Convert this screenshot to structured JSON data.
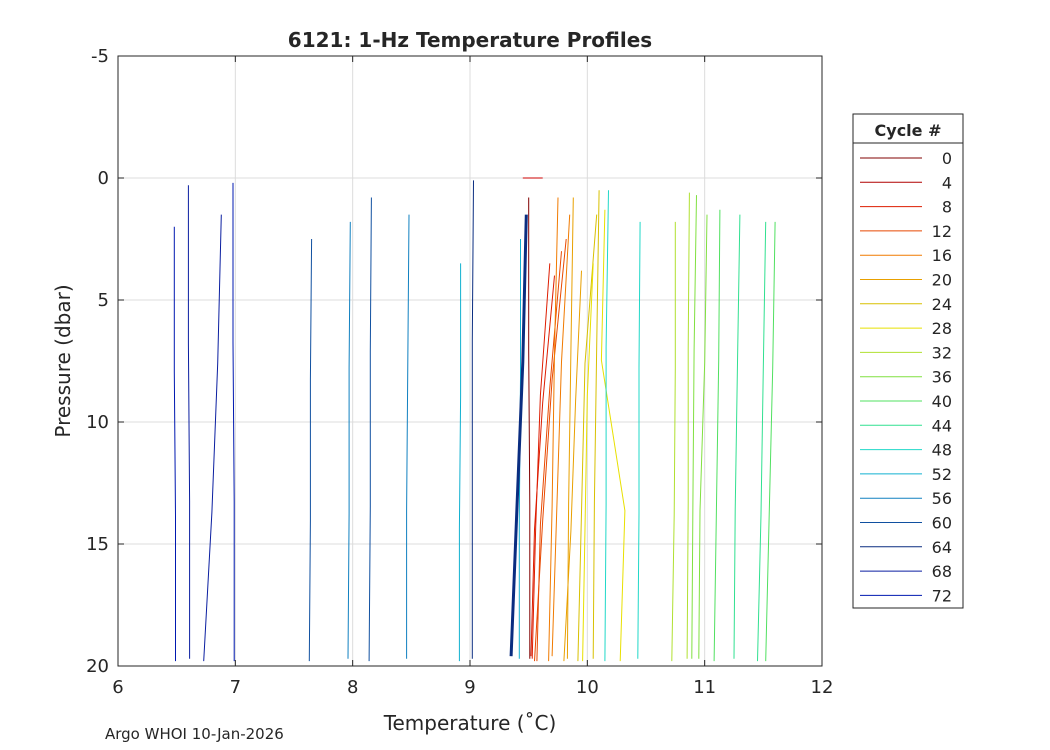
{
  "chart_data": {
    "type": "line",
    "title": "6121: 1-Hz Temperature Profiles",
    "xlabel": "Temperature (˚C)",
    "ylabel": "Pressure (dbar)",
    "xlim": [
      6,
      12
    ],
    "ylim": [
      -5,
      20
    ],
    "y_reversed": true,
    "grid": true,
    "x_ticks": [
      "6",
      "7",
      "8",
      "9",
      "10",
      "11",
      "12"
    ],
    "y_ticks": [
      "-5",
      "0",
      "5",
      "10",
      "15",
      "20"
    ],
    "legend": {
      "title": "Cycle #",
      "placement": "right",
      "entries": [
        "0",
        "4",
        "8",
        "12",
        "16",
        "20",
        "24",
        "28",
        "32",
        "36",
        "40",
        "44",
        "48",
        "52",
        "56",
        "60",
        "64",
        "68",
        "72"
      ],
      "colors": [
        "#800000",
        "#b00000",
        "#dd1c00",
        "#e84800",
        "#f07a00",
        "#e8a000",
        "#d8c000",
        "#e8e000",
        "#b0e030",
        "#80e040",
        "#50e060",
        "#30e090",
        "#20d8c8",
        "#10b0d0",
        "#1080c0",
        "#1050a0",
        "#0a2d80",
        "#0a1ea0",
        "#0018b0"
      ]
    },
    "series": [
      {
        "name": "0",
        "color": "#800000",
        "profiles": [
          {
            "top": 0.8,
            "bottom": 19.7,
            "x": [
              9.5,
              9.5,
              9.51,
              9.51
            ]
          }
        ]
      },
      {
        "name": "4",
        "color": "#cc0000",
        "profiles": [
          {
            "top": 0.0,
            "bottom": 0.0,
            "x": [
              9.45,
              9.62
            ]
          }
        ]
      },
      {
        "name": "8",
        "color": "#dd1c00",
        "profiles": [
          {
            "top": 4.0,
            "bottom": 19.6,
            "x": [
              9.72,
              9.62,
              9.55,
              9.52
            ]
          },
          {
            "top": 3.5,
            "bottom": 19.7,
            "x": [
              9.68,
              9.6,
              9.56,
              9.53
            ]
          }
        ]
      },
      {
        "name": "12",
        "color": "#e84800",
        "profiles": [
          {
            "top": 2.5,
            "bottom": 19.8,
            "x": [
              9.82,
              9.7,
              9.62,
              9.55
            ]
          },
          {
            "top": 3.0,
            "bottom": 19.8,
            "x": [
              9.78,
              9.68,
              9.6,
              9.57
            ]
          }
        ]
      },
      {
        "name": "16",
        "color": "#f07a00",
        "profiles": [
          {
            "top": 1.5,
            "bottom": 19.6,
            "x": [
              9.85,
              9.78,
              9.74,
              9.7
            ]
          },
          {
            "top": 0.8,
            "bottom": 19.8,
            "x": [
              9.75,
              9.72,
              9.7,
              9.67
            ]
          }
        ]
      },
      {
        "name": "20",
        "color": "#e8a000",
        "profiles": [
          {
            "top": 0.8,
            "bottom": 19.7,
            "x": [
              9.88,
              9.86,
              9.84,
              9.83
            ]
          },
          {
            "top": 3.8,
            "bottom": 19.8,
            "x": [
              9.95,
              9.9,
              9.86,
              9.8
            ]
          }
        ]
      },
      {
        "name": "24",
        "color": "#d8c000",
        "profiles": [
          {
            "top": 1.5,
            "bottom": 19.8,
            "x": [
              10.08,
              9.98,
              9.95,
              9.92
            ]
          },
          {
            "top": 0.5,
            "bottom": 19.7,
            "x": [
              10.1,
              10.08,
              10.06,
              10.05
            ]
          }
        ]
      },
      {
        "name": "28",
        "color": "#e8e000",
        "profiles": [
          {
            "top": 1.3,
            "bottom": 19.8,
            "x": [
              10.15,
              10.12,
              10.32,
              10.28
            ]
          },
          {
            "top": 3.5,
            "bottom": 19.8,
            "x": [
              10.05,
              10.0,
              9.98,
              9.96
            ]
          }
        ]
      },
      {
        "name": "32",
        "color": "#b0e030",
        "profiles": [
          {
            "top": 1.8,
            "bottom": 19.8,
            "x": [
              10.75,
              10.75,
              10.74,
              10.72
            ]
          },
          {
            "top": 0.6,
            "bottom": 19.7,
            "x": [
              10.87,
              10.86,
              10.86,
              10.85
            ]
          }
        ]
      },
      {
        "name": "36",
        "color": "#80e040",
        "profiles": [
          {
            "top": 0.7,
            "bottom": 19.7,
            "x": [
              10.93,
              10.91,
              10.9,
              10.89
            ]
          },
          {
            "top": 1.5,
            "bottom": 19.7,
            "x": [
              11.02,
              11.0,
              10.96,
              10.95
            ]
          }
        ]
      },
      {
        "name": "40",
        "color": "#50e060",
        "profiles": [
          {
            "top": 1.3,
            "bottom": 19.8,
            "x": [
              11.13,
              11.12,
              11.1,
              11.08
            ]
          },
          {
            "top": 1.8,
            "bottom": 19.8,
            "x": [
              11.6,
              11.58,
              11.55,
              11.52
            ]
          }
        ]
      },
      {
        "name": "44",
        "color": "#30e090",
        "profiles": [
          {
            "top": 1.8,
            "bottom": 19.8,
            "x": [
              11.52,
              11.5,
              11.48,
              11.45
            ]
          },
          {
            "top": 1.5,
            "bottom": 19.7,
            "x": [
              11.3,
              11.28,
              11.26,
              11.25
            ]
          }
        ]
      },
      {
        "name": "48",
        "color": "#20d8c8",
        "profiles": [
          {
            "top": 1.8,
            "bottom": 19.7,
            "x": [
              10.45,
              10.44,
              10.44,
              10.43
            ]
          },
          {
            "top": 0.5,
            "bottom": 19.8,
            "x": [
              10.18,
              10.16,
              10.16,
              10.15
            ]
          }
        ]
      },
      {
        "name": "52",
        "color": "#10b0d0",
        "profiles": [
          {
            "top": 3.5,
            "bottom": 19.8,
            "x": [
              8.92,
              8.92,
              8.91,
              8.91
            ]
          },
          {
            "top": 2.5,
            "bottom": 19.7,
            "x": [
              9.43,
              9.43,
              9.42,
              9.42
            ]
          }
        ]
      },
      {
        "name": "56",
        "color": "#1080c0",
        "profiles": [
          {
            "top": 1.5,
            "bottom": 19.7,
            "x": [
              8.48,
              8.47,
              8.46,
              8.46
            ]
          },
          {
            "top": 1.8,
            "bottom": 19.7,
            "x": [
              7.98,
              7.97,
              7.97,
              7.96
            ]
          }
        ]
      },
      {
        "name": "60",
        "color": "#1050a0",
        "profiles": [
          {
            "top": 0.8,
            "bottom": 19.8,
            "x": [
              8.16,
              8.15,
              8.15,
              8.14
            ]
          },
          {
            "top": 2.5,
            "bottom": 19.8,
            "x": [
              7.65,
              7.64,
              7.64,
              7.63
            ]
          }
        ]
      },
      {
        "name": "64",
        "color": "#0a2d80",
        "profiles": [
          {
            "top": 1.5,
            "bottom": 19.6,
            "x": [
              9.48,
              9.45,
              9.4,
              9.35
            ]
          },
          {
            "top": 0.1,
            "bottom": 19.7,
            "x": [
              9.03,
              9.02,
              9.02,
              9.02
            ]
          }
        ]
      },
      {
        "name": "68",
        "color": "#0a1ea0",
        "profiles": [
          {
            "top": 0.3,
            "bottom": 19.7,
            "x": [
              6.6,
              6.6,
              6.61,
              6.61
            ]
          },
          {
            "top": 1.5,
            "bottom": 19.8,
            "x": [
              6.88,
              6.85,
              6.8,
              6.73
            ]
          }
        ]
      },
      {
        "name": "72",
        "color": "#0018b0",
        "profiles": [
          {
            "top": 2.0,
            "bottom": 19.8,
            "x": [
              6.48,
              6.48,
              6.49,
              6.49
            ]
          },
          {
            "top": 0.2,
            "bottom": 19.8,
            "x": [
              6.98,
              6.98,
              6.99,
              6.99
            ]
          }
        ]
      }
    ]
  },
  "footer": {
    "text": "Argo WHOI 10-Jan-2026"
  }
}
